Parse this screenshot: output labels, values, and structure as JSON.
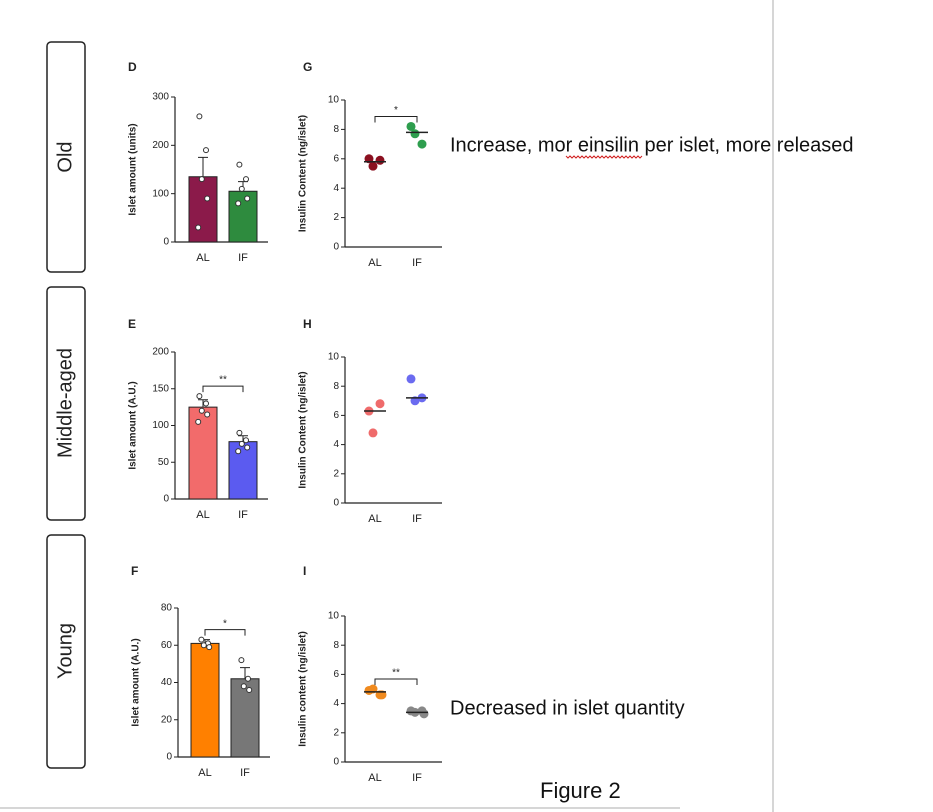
{
  "row_labels": [
    "Old",
    "Middle-aged",
    "Young"
  ],
  "annotations": [
    "Increase, mor einsilin per islet, more released",
    "Decreased in islet quantity"
  ],
  "caption": "Figure 2",
  "chart_data": [
    {
      "type": "bar",
      "panel": "D",
      "y_label": "Islet amount (units)",
      "categories": [
        "AL",
        "IF"
      ],
      "values": [
        135,
        105
      ],
      "errors": [
        40,
        20
      ],
      "colors": [
        "#8b1a4a",
        "#2e8b3e"
      ],
      "points": [
        [
          260,
          190,
          130,
          90,
          30
        ],
        [
          160,
          130,
          110,
          90,
          80
        ]
      ],
      "ylim": [
        0,
        300
      ],
      "yticks": [
        0,
        100,
        200,
        300
      ]
    },
    {
      "type": "scatter",
      "panel": "G",
      "y_label": "Insulin Content (ng/islet)",
      "categories": [
        "AL",
        "IF"
      ],
      "points": [
        [
          6.0,
          5.9,
          5.5
        ],
        [
          8.2,
          7.0,
          7.7
        ]
      ],
      "means": [
        5.8,
        7.8
      ],
      "colors": [
        "#8b1020",
        "#2e9e4e"
      ],
      "significance": "*",
      "ylim": [
        0,
        10
      ],
      "yticks": [
        0,
        2,
        4,
        6,
        8,
        10
      ]
    },
    {
      "type": "bar",
      "panel": "E",
      "y_label": "Islet amount (A.U.)",
      "categories": [
        "AL",
        "IF"
      ],
      "values": [
        125,
        78
      ],
      "errors": [
        10,
        8
      ],
      "colors": [
        "#f26b6b",
        "#5b5bf0"
      ],
      "points": [
        [
          140,
          130,
          120,
          115,
          105
        ],
        [
          90,
          80,
          75,
          70,
          65
        ]
      ],
      "significance": "**",
      "ylim": [
        0,
        200
      ],
      "yticks": [
        0,
        50,
        100,
        150,
        200
      ]
    },
    {
      "type": "scatter",
      "panel": "H",
      "y_label": "Insulin Content (ng/islet)",
      "categories": [
        "AL",
        "IF"
      ],
      "points": [
        [
          6.3,
          6.8,
          4.8
        ],
        [
          8.5,
          7.2,
          7.0
        ]
      ],
      "means": [
        6.3,
        7.2
      ],
      "colors": [
        "#ef6b6b",
        "#6b6bf0"
      ],
      "ylim": [
        0,
        10
      ],
      "yticks": [
        0,
        2,
        4,
        6,
        8,
        10
      ]
    },
    {
      "type": "bar",
      "panel": "F",
      "y_label": "Islet amount (A.U.)",
      "categories": [
        "AL",
        "IF"
      ],
      "values": [
        61,
        42
      ],
      "errors": [
        2,
        6
      ],
      "colors": [
        "#ff8000",
        "#777777"
      ],
      "points": [
        [
          63,
          61,
          60,
          59
        ],
        [
          52,
          42,
          38,
          36
        ]
      ],
      "significance": "*",
      "ylim": [
        0,
        80
      ],
      "yticks": [
        0,
        20,
        40,
        60,
        80
      ]
    },
    {
      "type": "scatter",
      "panel": "I",
      "y_label": "Insulin content (ng/islet)",
      "categories": [
        "AL",
        "IF"
      ],
      "points": [
        [
          4.9,
          4.6,
          5.0,
          4.6
        ],
        [
          3.5,
          3.5,
          3.4,
          3.3
        ]
      ],
      "means": [
        4.8,
        3.4
      ],
      "colors": [
        "#f08a1e",
        "#888888"
      ],
      "significance": "**",
      "ylim": [
        0,
        10
      ],
      "yticks": [
        0,
        2,
        4,
        6,
        8,
        10
      ]
    }
  ]
}
